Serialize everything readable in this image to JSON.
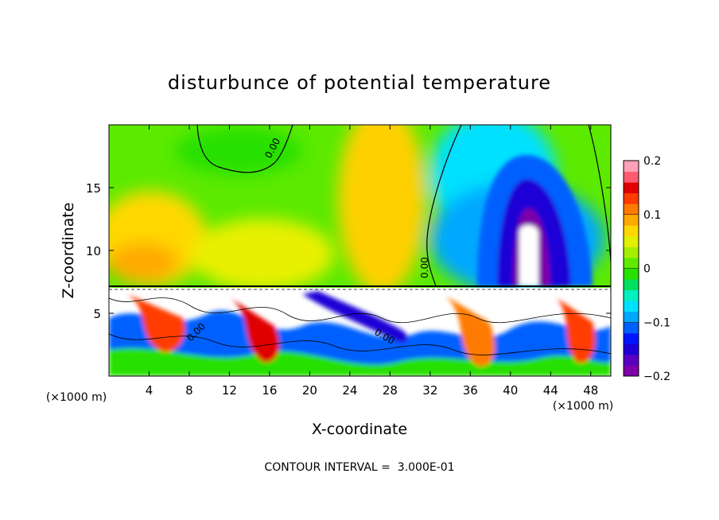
{
  "chart_data": {
    "type": "heatmap",
    "title": "disturbunce of potential temperature",
    "xlabel": "X-coordinate",
    "ylabel": "Z-coordinate",
    "x_unit": "(×1000 m)",
    "y_unit": "(×1000 m)",
    "xlim": [
      0,
      50
    ],
    "ylim": [
      0,
      20
    ],
    "x_ticks": [
      4,
      8,
      12,
      16,
      20,
      24,
      28,
      32,
      36,
      40,
      44,
      48
    ],
    "y_ticks": [
      5,
      10,
      15
    ],
    "colorbar": {
      "range": [
        -0.2,
        0.2
      ],
      "tick_values": [
        0.2,
        0.1,
        0,
        -0.1,
        -0.2
      ],
      "tick_labels": [
        "0.2",
        "0.1",
        "0",
        "−0.1",
        "−0.2"
      ],
      "colors": [
        "#7d00a8",
        "#5a00c0",
        "#1e00d6",
        "#0016ff",
        "#0060ff",
        "#00a8ff",
        "#00e0ff",
        "#00f0c0",
        "#00e060",
        "#28e000",
        "#60ea00",
        "#a6ee00",
        "#e0f000",
        "#ffd800",
        "#ffaa00",
        "#ff7a00",
        "#ff3c00",
        "#e00000",
        "#ff5a70",
        "#ffa0b8"
      ]
    },
    "contour_labels": [
      "0.00",
      "0.00",
      "0.00",
      "0.00"
    ],
    "footer": "CONTOUR INTERVAL =  3.000E-01"
  }
}
